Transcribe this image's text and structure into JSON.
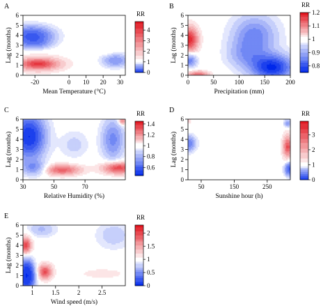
{
  "chart_data": [
    {
      "type": "heatmap",
      "panel_label": "A",
      "xlabel": "Mean Temperature (°C)",
      "ylabel": "Lag (months)",
      "xlim": [
        -27,
        33
      ],
      "xticks": [
        -20,
        0,
        10,
        20,
        30
      ],
      "ylim": [
        0,
        6
      ],
      "yticks": [
        0,
        1,
        2,
        3,
        4,
        5,
        6
      ],
      "colorbar_title": "RR",
      "colorbar_range": [
        0,
        4.8
      ],
      "colorbar_ticks": [
        0,
        1,
        2,
        3,
        4
      ],
      "blobs": [
        {
          "x": -18,
          "y": 1.15,
          "sx": 11,
          "sy": 0.55,
          "rr": 4.3
        },
        {
          "x": -22,
          "y": 4.0,
          "sx": 8,
          "sy": 0.6,
          "rr": 0.25
        },
        {
          "x": -20,
          "y": 3.2,
          "sx": 6,
          "sy": 0.4,
          "rr": 0.6
        },
        {
          "x": 27,
          "y": 1.5,
          "sx": 5,
          "sy": 0.45,
          "rr": 0.5
        },
        {
          "x": 23,
          "y": 3.0,
          "sx": 2.5,
          "sy": 0.7,
          "rr": 1.25
        }
      ]
    },
    {
      "type": "heatmap",
      "panel_label": "B",
      "xlabel": "Precipitation (mm)",
      "ylabel": "Lag (months)",
      "xlim": [
        0,
        200
      ],
      "xticks": [
        0,
        50,
        100,
        150,
        200
      ],
      "ylim": [
        0,
        6
      ],
      "yticks": [
        0,
        1,
        2,
        3,
        4,
        5,
        6
      ],
      "colorbar_title": "RR",
      "colorbar_range": [
        0.75,
        1.2
      ],
      "colorbar_ticks": [
        0.8,
        0.9,
        1.0,
        1.1,
        1.2
      ],
      "blobs": [
        {
          "x": 3,
          "y": 3.6,
          "sx": 12,
          "sy": 0.9,
          "rr": 1.18
        },
        {
          "x": 3,
          "y": 1.5,
          "sx": 10,
          "sy": 0.45,
          "rr": 0.85
        },
        {
          "x": 20,
          "y": 0.1,
          "sx": 15,
          "sy": 0.25,
          "rr": 1.12
        },
        {
          "x": 165,
          "y": 0.8,
          "sx": 28,
          "sy": 0.9,
          "rr": 0.76
        },
        {
          "x": 130,
          "y": 4.0,
          "sx": 30,
          "sy": 1.4,
          "rr": 0.86
        },
        {
          "x": 110,
          "y": 2.0,
          "sx": 25,
          "sy": 1.0,
          "rr": 0.92
        }
      ]
    },
    {
      "type": "heatmap",
      "panel_label": "C",
      "xlabel": "Relative Humidity (%)",
      "ylabel": "Lag (months)",
      "xlim": [
        30,
        96
      ],
      "xticks": [
        30,
        50,
        70
      ],
      "ylim": [
        0,
        6
      ],
      "yticks": [
        0,
        1,
        2,
        3,
        4,
        5,
        6
      ],
      "colorbar_title": "RR",
      "colorbar_range": [
        0.45,
        1.45
      ],
      "colorbar_ticks": [
        0.6,
        0.8,
        1.0,
        1.2,
        1.4
      ],
      "blobs": [
        {
          "x": 34,
          "y": 4.3,
          "sx": 7,
          "sy": 1.5,
          "rr": 0.48
        },
        {
          "x": 37,
          "y": 1.2,
          "sx": 5,
          "sy": 0.5,
          "rr": 0.75
        },
        {
          "x": 55,
          "y": 1.0,
          "sx": 9,
          "sy": 0.4,
          "rr": 1.3
        },
        {
          "x": 91,
          "y": 1.2,
          "sx": 7,
          "sy": 0.45,
          "rr": 1.4
        },
        {
          "x": 88,
          "y": 4.0,
          "sx": 5,
          "sy": 1.4,
          "rr": 0.7
        },
        {
          "x": 63,
          "y": 3.5,
          "sx": 6,
          "sy": 0.9,
          "rr": 0.88
        },
        {
          "x": 94,
          "y": 5.8,
          "sx": 2,
          "sy": 0.3,
          "rr": 1.3
        }
      ]
    },
    {
      "type": "heatmap",
      "panel_label": "D",
      "xlabel": "Sunshine hour (h)",
      "ylabel": "Lag (months)",
      "xlim": [
        10,
        320
      ],
      "xticks": [
        50,
        150,
        250
      ],
      "ylim": [
        0,
        6
      ],
      "yticks": [
        0,
        1,
        2,
        3,
        4,
        5,
        6
      ],
      "colorbar_title": "RR",
      "colorbar_range": [
        0,
        3.9
      ],
      "colorbar_ticks": [
        0,
        1,
        2,
        3
      ],
      "blobs": [
        {
          "x": 312,
          "y": 3.3,
          "sx": 12,
          "sy": 0.9,
          "rr": 3.2
        },
        {
          "x": 12,
          "y": 3.6,
          "sx": 14,
          "sy": 0.5,
          "rr": 0.4
        },
        {
          "x": 318,
          "y": 1.1,
          "sx": 10,
          "sy": 0.45,
          "rr": 0.25
        },
        {
          "x": 312,
          "y": 5.6,
          "sx": 8,
          "sy": 0.3,
          "rr": 0.55
        },
        {
          "x": 12,
          "y": 5.9,
          "sx": 6,
          "sy": 0.25,
          "rr": 1.6
        }
      ]
    },
    {
      "type": "heatmap",
      "panel_label": "E",
      "xlabel": "Wind speed (m/s)",
      "ylabel": "Lag (months)",
      "xlim": [
        0.8,
        3.0
      ],
      "xticks": [
        1.0,
        1.5,
        2.0,
        2.5
      ],
      "ylim": [
        0,
        6
      ],
      "yticks": [
        0,
        1,
        2,
        3,
        4,
        5,
        6
      ],
      "colorbar_title": "RR",
      "colorbar_range": [
        0,
        2.3
      ],
      "colorbar_ticks": [
        0,
        0.5,
        1.0,
        1.5,
        2.0
      ],
      "blobs": [
        {
          "x": 0.86,
          "y": 4.0,
          "sx": 0.09,
          "sy": 0.65,
          "rr": 2.1
        },
        {
          "x": 0.88,
          "y": 1.0,
          "sx": 0.1,
          "sy": 0.9,
          "rr": 0.05
        },
        {
          "x": 1.27,
          "y": 1.4,
          "sx": 0.12,
          "sy": 0.55,
          "rr": 2.0
        },
        {
          "x": 1.2,
          "y": 5.6,
          "sx": 0.2,
          "sy": 0.5,
          "rr": 0.7
        },
        {
          "x": 2.75,
          "y": 5.0,
          "sx": 0.25,
          "sy": 0.9,
          "rr": 0.75
        },
        {
          "x": 2.5,
          "y": 1.2,
          "sx": 0.35,
          "sy": 0.35,
          "rr": 1.2
        }
      ]
    }
  ]
}
